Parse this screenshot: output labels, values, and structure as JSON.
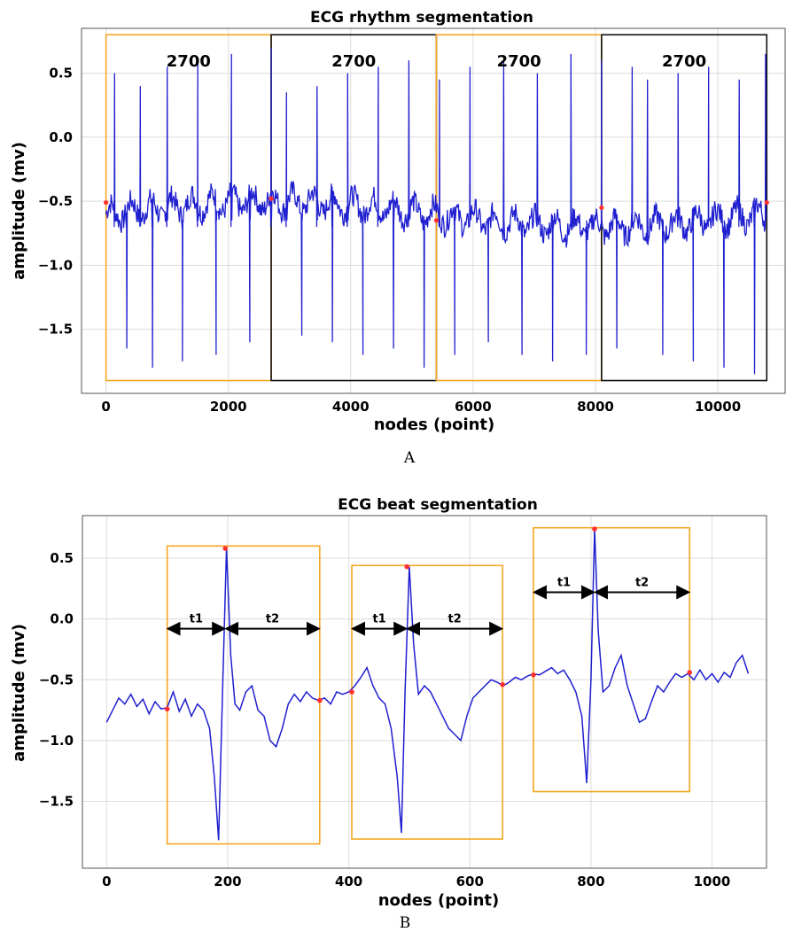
{
  "colors": {
    "signal": "#1f1fd0",
    "marker": "#ff3030",
    "orange_box": "#f5a623",
    "black_box": "#111111",
    "arrow": "#000000"
  },
  "chart_data": [
    {
      "type": "line",
      "panel": "A",
      "title": "ECG rhythm segmentation",
      "xlabel": "nodes (point)",
      "ylabel": "amplitude (mv)",
      "xlim": [
        -400,
        11100
      ],
      "ylim": [
        -2.0,
        0.85
      ],
      "xticks": [
        0,
        2000,
        4000,
        6000,
        8000,
        10000
      ],
      "yticks": [
        0.5,
        0.0,
        -0.5,
        -1.0,
        -1.5
      ],
      "grid": true,
      "baseline": -0.6,
      "r_peaks": [
        [
          140,
          0.5
        ],
        [
          340,
          -1.65
        ],
        [
          560,
          0.4
        ],
        [
          760,
          -1.8
        ],
        [
          1000,
          0.55
        ],
        [
          1250,
          -1.75
        ],
        [
          1500,
          0.6
        ],
        [
          1800,
          -1.7
        ],
        [
          2050,
          0.65
        ],
        [
          2350,
          -1.6
        ],
        [
          2700,
          0.7
        ],
        [
          2950,
          0.35
        ],
        [
          3200,
          -1.55
        ],
        [
          3450,
          0.4
        ],
        [
          3700,
          -1.6
        ],
        [
          3950,
          0.5
        ],
        [
          4200,
          -1.7
        ],
        [
          4450,
          0.55
        ],
        [
          4700,
          -1.65
        ],
        [
          4950,
          0.6
        ],
        [
          5200,
          -1.8
        ],
        [
          5450,
          0.45
        ],
        [
          5700,
          -1.7
        ],
        [
          5950,
          0.55
        ],
        [
          6250,
          -1.6
        ],
        [
          6500,
          0.6
        ],
        [
          6800,
          -1.7
        ],
        [
          7050,
          0.5
        ],
        [
          7300,
          -1.75
        ],
        [
          7600,
          0.65
        ],
        [
          7850,
          -1.7
        ],
        [
          8100,
          0.6
        ],
        [
          8350,
          -1.65
        ],
        [
          8600,
          0.55
        ],
        [
          8850,
          0.45
        ],
        [
          9100,
          -1.7
        ],
        [
          9350,
          0.5
        ],
        [
          9600,
          -1.75
        ],
        [
          9850,
          0.55
        ],
        [
          10100,
          -1.8
        ],
        [
          10350,
          0.45
        ],
        [
          10600,
          -1.85
        ],
        [
          10780,
          0.65
        ]
      ],
      "segments": [
        {
          "label": "2700",
          "x0": 0,
          "x1": 2700,
          "color": "orange"
        },
        {
          "label": "2700",
          "x0": 2700,
          "x1": 5400,
          "color": "black"
        },
        {
          "label": "2700",
          "x0": 5400,
          "x1": 8100,
          "color": "orange"
        },
        {
          "label": "2700",
          "x0": 8100,
          "x1": 10800,
          "color": "black"
        }
      ],
      "segment_ylim": [
        -1.9,
        0.8
      ],
      "markers": [
        [
          0,
          -0.51
        ],
        [
          2700,
          -0.48
        ],
        [
          5400,
          -0.65
        ],
        [
          8100,
          -0.55
        ],
        [
          10800,
          -0.51
        ]
      ]
    },
    {
      "type": "line",
      "panel": "B",
      "title": "ECG beat segmentation",
      "xlabel": "nodes (point)",
      "ylabel": "amplitude (mv)",
      "xlim": [
        -40,
        1090
      ],
      "ylim": [
        -2.05,
        0.85
      ],
      "xticks": [
        0,
        200,
        400,
        600,
        800,
        1000
      ],
      "yticks": [
        0.5,
        0.0,
        -0.5,
        -1.0,
        -1.5
      ],
      "grid": true,
      "x": [
        0,
        10,
        20,
        30,
        40,
        50,
        60,
        70,
        80,
        90,
        100,
        110,
        120,
        130,
        140,
        150,
        160,
        170,
        178,
        185,
        192,
        198,
        205,
        212,
        220,
        230,
        240,
        250,
        260,
        270,
        280,
        290,
        300,
        310,
        320,
        330,
        340,
        350,
        360,
        370,
        380,
        390,
        400,
        410,
        420,
        430,
        440,
        450,
        460,
        470,
        480,
        487,
        493,
        500,
        507,
        515,
        525,
        535,
        545,
        555,
        565,
        575,
        585,
        595,
        605,
        615,
        625,
        635,
        645,
        655,
        665,
        675,
        685,
        695,
        705,
        715,
        725,
        735,
        745,
        755,
        765,
        775,
        785,
        793,
        800,
        806,
        812,
        820,
        830,
        840,
        850,
        860,
        870,
        880,
        890,
        900,
        910,
        920,
        930,
        940,
        950,
        960,
        970,
        980,
        990,
        1000,
        1010,
        1020,
        1030,
        1040,
        1050,
        1060
      ],
      "y": [
        -0.85,
        -0.75,
        -0.65,
        -0.7,
        -0.62,
        -0.72,
        -0.66,
        -0.78,
        -0.68,
        -0.74,
        -0.73,
        -0.6,
        -0.76,
        -0.66,
        -0.8,
        -0.7,
        -0.75,
        -0.9,
        -1.3,
        -1.82,
        -0.5,
        0.58,
        -0.3,
        -0.7,
        -0.75,
        -0.6,
        -0.55,
        -0.75,
        -0.8,
        -1.0,
        -1.05,
        -0.9,
        -0.7,
        -0.62,
        -0.68,
        -0.6,
        -0.65,
        -0.67,
        -0.65,
        -0.7,
        -0.6,
        -0.62,
        -0.6,
        -0.55,
        -0.48,
        -0.4,
        -0.55,
        -0.65,
        -0.7,
        -0.9,
        -1.3,
        -1.76,
        -0.6,
        0.43,
        -0.2,
        -0.62,
        -0.55,
        -0.6,
        -0.7,
        -0.8,
        -0.9,
        -0.95,
        -1.0,
        -0.8,
        -0.65,
        -0.6,
        -0.55,
        -0.5,
        -0.52,
        -0.55,
        -0.52,
        -0.48,
        -0.5,
        -0.47,
        -0.45,
        -0.46,
        -0.43,
        -0.4,
        -0.45,
        -0.42,
        -0.5,
        -0.6,
        -0.8,
        -1.35,
        -0.5,
        0.74,
        -0.1,
        -0.6,
        -0.55,
        -0.4,
        -0.3,
        -0.55,
        -0.7,
        -0.85,
        -0.82,
        -0.68,
        -0.55,
        -0.6,
        -0.52,
        -0.45,
        -0.48,
        -0.45,
        -0.5,
        -0.42,
        -0.5,
        -0.45,
        -0.52,
        -0.44,
        -0.48,
        -0.36,
        -0.3,
        -0.45
      ],
      "beats": [
        {
          "x0": 100,
          "x1": 352,
          "y0": -1.85,
          "y1": 0.6,
          "peak_x": 196
        },
        {
          "x0": 405,
          "x1": 654,
          "y0": -1.81,
          "y1": 0.44,
          "peak_x": 496
        },
        {
          "x0": 705,
          "x1": 963,
          "y0": -1.42,
          "y1": 0.75,
          "peak_x": 806
        }
      ],
      "intervals": [
        {
          "label": "t1",
          "x0": 100,
          "x1": 196,
          "y": -0.08
        },
        {
          "label": "t2",
          "x0": 196,
          "x1": 352,
          "y": -0.08
        },
        {
          "label": "t1",
          "x0": 405,
          "x1": 496,
          "y": -0.08
        },
        {
          "label": "t2",
          "x0": 496,
          "x1": 654,
          "y": -0.08
        },
        {
          "label": "t1",
          "x0": 705,
          "x1": 806,
          "y": 0.22
        },
        {
          "label": "t2",
          "x0": 806,
          "x1": 963,
          "y": 0.22
        }
      ],
      "markers": [
        [
          100,
          -0.74
        ],
        [
          196,
          0.58
        ],
        [
          352,
          -0.67
        ],
        [
          405,
          -0.6
        ],
        [
          496,
          0.43
        ],
        [
          654,
          -0.54
        ],
        [
          705,
          -0.46
        ],
        [
          806,
          0.74
        ],
        [
          963,
          -0.44
        ]
      ]
    }
  ],
  "panel_labels": {
    "a": "A",
    "b": "B"
  }
}
